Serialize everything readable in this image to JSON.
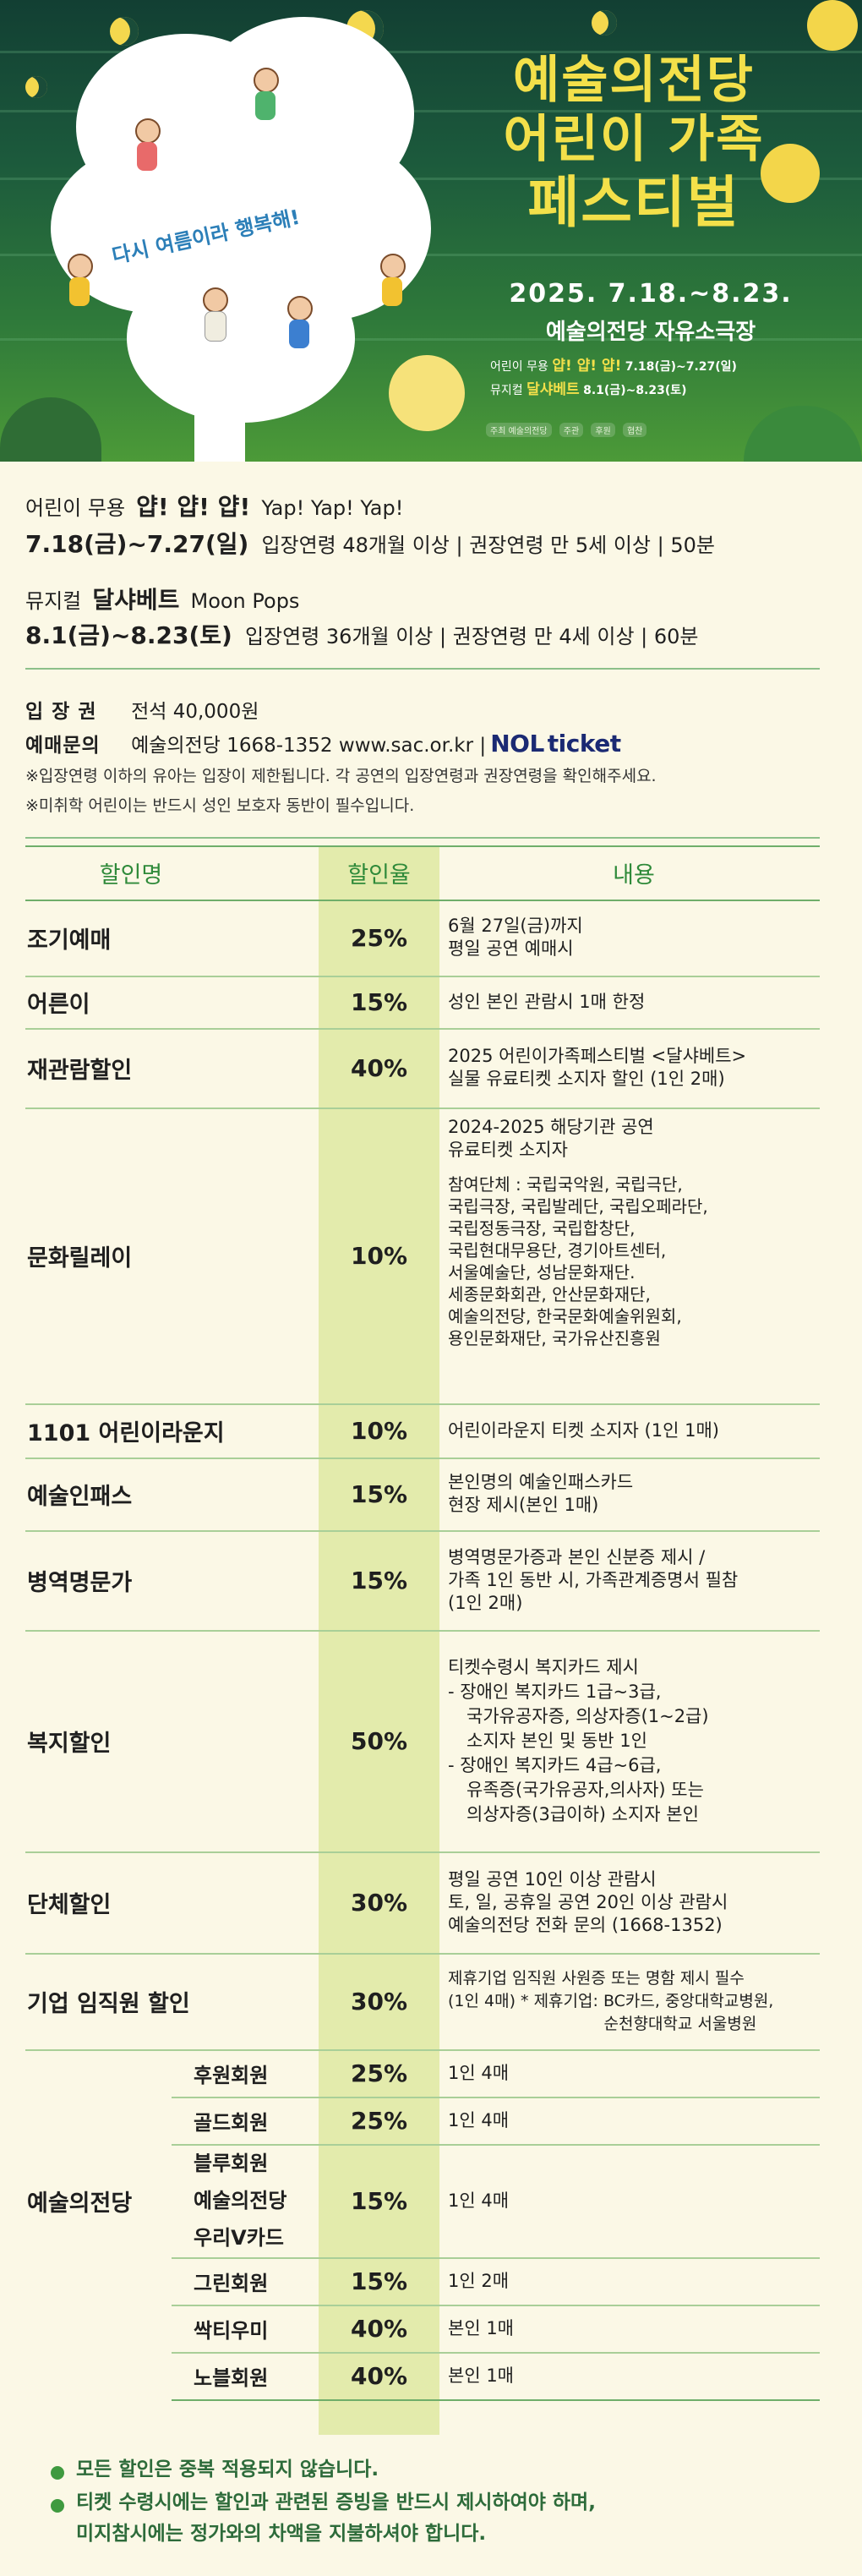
{
  "poster": {
    "title_line1": "예술의전당",
    "title_line2": "어린이 가족",
    "title_line3": "페스티벌",
    "tagline": "다시 여름이라 행복해!",
    "dates": "2025. 7.18.~8.23.",
    "venue": "예술의전당 자유소극장",
    "show1": {
      "category": "어린이 무용",
      "title": "얍! 얍! 얍!",
      "dates": "7.18(금)~7.27(일)"
    },
    "show2": {
      "category": "뮤지컬",
      "title": "달샤베트",
      "dates": "8.1(금)~8.23(토)"
    },
    "sponsors": [
      "주최 예술의전당",
      "주관",
      "후원",
      "협찬"
    ]
  },
  "shows": [
    {
      "category": "어린이 무용",
      "title": "얍! 얍! 얍!",
      "title_en": "Yap! Yap! Yap!",
      "dates": "7.18(금)~7.27(일)",
      "detail": "입장연령 48개월 이상 | 권장연령 만 5세 이상 | 50분"
    },
    {
      "category": "뮤지컬",
      "title": "달샤베트",
      "title_en": "Moon Pops",
      "dates": "8.1(금)~8.23(토)",
      "detail": "입장연령 36개월 이상 | 권장연령 만 4세 이상 | 60분"
    }
  ],
  "ticket": {
    "price_label": "입 장 권",
    "price_value": "전석 40,000원",
    "contact_label": "예매문의",
    "contact_value": "예술의전당 1668-1352 www.sac.or.kr |",
    "nol_logo_a": "NOL",
    "nol_logo_b": "ticket",
    "note1": "※입장연령 이하의 유아는 입장이 제한됩니다. 각 공연의 입장연령과 권장연령을 확인해주세요.",
    "note2": "※미취학 어린이는 반드시 성인 보호자 동반이 필수입니다."
  },
  "table": {
    "headers": [
      "할인명",
      "할인율",
      "내용"
    ],
    "rows": [
      {
        "name": "조기예매",
        "rate": "25%",
        "desc": [
          "6월 27일(금)까지",
          "평일 공연 예매시"
        ]
      },
      {
        "name": "어른이",
        "rate": "15%",
        "desc": [
          "성인 본인 관람시 1매 한정"
        ]
      },
      {
        "name": "재관람할인",
        "rate": "40%",
        "desc": [
          "2025 어린이가족페스티벌 <달샤베트>",
          "실물 유료티켓 소지자 할인 (1인 2매)"
        ]
      },
      {
        "name": "문화릴레이",
        "rate": "10%",
        "desc": [
          "2024-2025 해당기관 공연",
          "유료티켓 소지자"
        ],
        "desc_small": [
          "참여단체 : 국립국악원, 국립극단,",
          "국립극장, 국립발레단, 국립오페라단,",
          "국립정동극장, 국립합창단,",
          "국립현대무용단, 경기아트센터,",
          "서울예술단, 성남문화재단.",
          "세종문화회관, 안산문화재단,",
          "예술의전당, 한국문화예술위원회,",
          "용인문화재단, 국가유산진흥원"
        ]
      },
      {
        "name": "1101 어린이라운지",
        "rate": "10%",
        "desc": [
          "어린이라운지 티켓 소지자 (1인 1매)"
        ]
      },
      {
        "name": "예술인패스",
        "rate": "15%",
        "desc": [
          "본인명의 예술인패스카드",
          "현장 제시(본인 1매)"
        ]
      },
      {
        "name": "병역명문가",
        "rate": "15%",
        "desc": [
          "병역명문가증과 본인 신분증 제시 /",
          "가족 1인 동반 시, 가족관계증명서 필참",
          "(1인 2매)"
        ]
      },
      {
        "name": "복지할인",
        "rate": "50%",
        "desc": [
          "티켓수령시 복지카드 제시",
          "- 장애인 복지카드 1급~3급,",
          "국가유공자증, 의상자증(1~2급)",
          "소지자 본인 및 동반 1인",
          "- 장애인 복지카드 4급~6급,",
          "유족증(국가유공자,의사자) 또는",
          "의상자증(3급이하) 소지자 본인"
        ]
      },
      {
        "name": "단체할인",
        "rate": "30%",
        "desc": [
          "평일 공연 10인 이상 관람시",
          "토, 일, 공휴일 공연 20인 이상 관람시",
          "예술의전당 전화 문의 (1668-1352)"
        ]
      },
      {
        "name": "기업 임직원 할인",
        "rate": "30%",
        "desc": [
          "제휴기업 임직원 사원증 또는 명함 제시 필수",
          "(1인 4매) * 제휴기업: BC카드, 중앙대학교병원,",
          "순천향대학교 서울병원"
        ]
      }
    ],
    "membership_group": "예술의전당",
    "membership_rows": [
      {
        "name": "후원회원",
        "rate": "25%",
        "desc": "1인 4매"
      },
      {
        "name": "골드회원",
        "rate": "25%",
        "desc": "1인 4매"
      },
      {
        "name_lines": [
          "블루회원",
          "예술의전당",
          "우리V카드"
        ],
        "rate": "15%",
        "desc": "1인 4매"
      },
      {
        "name": "그린회원",
        "rate": "15%",
        "desc": "1인 2매"
      },
      {
        "name": "싹티우미",
        "rate": "40%",
        "desc": "본인 1매"
      },
      {
        "name": "노블회원",
        "rate": "40%",
        "desc": "본인 1매"
      }
    ]
  },
  "footnotes": [
    "모든 할인은 중복 적용되지 않습니다.",
    "티켓 수령시에는 할인과 관련된 증빙을 반드시 제시하여야 하며,",
    "미지참시에는 정가와의 차액을 지불하셔야 합니다."
  ],
  "colors": {
    "header_green": "#2f8a3a",
    "rate_bg": "#e3ebac",
    "page_bg": "#fbf8e6",
    "poster_title": "#f3e04a"
  }
}
